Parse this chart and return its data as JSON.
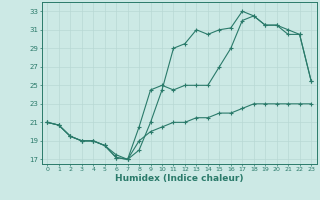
{
  "xlabel": "Humidex (Indice chaleur)",
  "xlim": [
    -0.5,
    23.5
  ],
  "ylim": [
    16.5,
    34
  ],
  "xticks": [
    0,
    1,
    2,
    3,
    4,
    5,
    6,
    7,
    8,
    9,
    10,
    11,
    12,
    13,
    14,
    15,
    16,
    17,
    18,
    19,
    20,
    21,
    22,
    23
  ],
  "yticks": [
    17,
    19,
    21,
    23,
    25,
    27,
    29,
    31,
    33
  ],
  "line_color": "#2a7a6a",
  "bg_color": "#cce9e5",
  "grid_color": "#b8d8d4",
  "series1_x": [
    0,
    1,
    2,
    3,
    4,
    5,
    6,
    7,
    8,
    9,
    10,
    11,
    12,
    13,
    14,
    15,
    16,
    17,
    18,
    19,
    20,
    21,
    22,
    23
  ],
  "series1_y": [
    21,
    20.7,
    19.5,
    19,
    19,
    18.5,
    17.2,
    17,
    18.0,
    21,
    24.5,
    29,
    29.5,
    31,
    30.5,
    31,
    31.2,
    33,
    32.5,
    31.5,
    31.5,
    30.5,
    30.5,
    25.5
  ],
  "series2_x": [
    0,
    1,
    2,
    3,
    4,
    5,
    6,
    7,
    8,
    9,
    10,
    11,
    12,
    13,
    14,
    15,
    16,
    17,
    18,
    19,
    20,
    21,
    22,
    23
  ],
  "series2_y": [
    21,
    20.7,
    19.5,
    19,
    19,
    18.5,
    17.2,
    17,
    20.5,
    24.5,
    25,
    24.5,
    25,
    25,
    25,
    27,
    29,
    32,
    32.5,
    31.5,
    31.5,
    31,
    30.5,
    25.5
  ],
  "series3_x": [
    0,
    1,
    2,
    3,
    4,
    5,
    6,
    7,
    8,
    9,
    10,
    11,
    12,
    13,
    14,
    15,
    16,
    17,
    18,
    19,
    20,
    21,
    22,
    23
  ],
  "series3_y": [
    21,
    20.7,
    19.5,
    19,
    19,
    18.5,
    17.5,
    17,
    19,
    20,
    20.5,
    21,
    21,
    21.5,
    21.5,
    22,
    22,
    22.5,
    23,
    23,
    23,
    23,
    23,
    23
  ]
}
